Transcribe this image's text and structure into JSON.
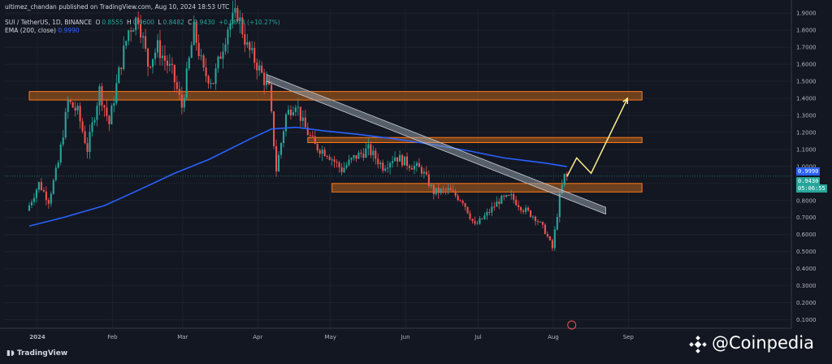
{
  "header": {
    "publisher": "ultimez_chandan published on TradingView.com, Aug 10, 2024 18:53 UTC",
    "symbol": "SUI / TetherUS, 1D, BINANCE",
    "ohlc": {
      "o_label": "O",
      "o": "0.8555",
      "h_label": "H",
      "h": "0.9600",
      "l_label": "L",
      "l": "0.8482",
      "c_label": "C",
      "c": "0.9430",
      "change": "+0.0878 (+10.27%)"
    },
    "ema_label": "EMA (200, close)",
    "ema_value": "0.9990"
  },
  "footer": {
    "tradingview": "TradingView"
  },
  "watermark": {
    "text": "@Coinpedia"
  },
  "price_tags": {
    "ema": "0.9990",
    "last": "0.9430",
    "countdown": "05:06:55"
  },
  "colors": {
    "up": "#26a69a",
    "down": "#ef5350",
    "ema": "#2962ff",
    "zone_fill": "#b8621b",
    "zone_border": "#ff7a1a",
    "channel": "#9aa5b1",
    "projection": "#ffef8a",
    "background": "#131722"
  },
  "chart_data": {
    "type": "candlestick",
    "title": "SUI / TetherUS, 1D, BINANCE",
    "y_axis": {
      "ylim": [
        0.05,
        1.92
      ],
      "ticks": [
        "0.1000",
        "0.2000",
        "0.3000",
        "0.4000",
        "0.5000",
        "0.6000",
        "0.7000",
        "0.8000",
        "0.9000",
        "1.0000",
        "1.1000",
        "1.2000",
        "1.3000",
        "1.4000",
        "1.5000",
        "1.6000",
        "1.7000",
        "1.8000",
        "1.9000"
      ],
      "position": "right"
    },
    "x_axis": {
      "ticks": [
        "2024",
        "Feb",
        "Mar",
        "Apr",
        "May",
        "Jun",
        "Jul",
        "Aug",
        "Sep"
      ]
    },
    "grid": true,
    "price_path": [
      [
        "2024-01-01",
        0.74
      ],
      [
        "2024-01-06",
        0.9
      ],
      [
        "2024-01-10",
        0.8
      ],
      [
        "2024-01-14",
        1.02
      ],
      [
        "2024-01-18",
        1.38
      ],
      [
        "2024-01-22",
        1.32
      ],
      [
        "2024-01-26",
        1.1
      ],
      [
        "2024-01-31",
        1.45
      ],
      [
        "2024-02-04",
        1.25
      ],
      [
        "2024-02-08",
        1.55
      ],
      [
        "2024-02-12",
        1.8
      ],
      [
        "2024-02-16",
        1.88
      ],
      [
        "2024-02-20",
        1.6
      ],
      [
        "2024-02-24",
        1.7
      ],
      [
        "2024-03-01",
        1.55
      ],
      [
        "2024-03-05",
        1.35
      ],
      [
        "2024-03-10",
        1.8
      ],
      [
        "2024-03-14",
        1.55
      ],
      [
        "2024-03-18",
        1.5
      ],
      [
        "2024-03-24",
        1.82
      ],
      [
        "2024-03-28",
        1.9
      ],
      [
        "2024-04-01",
        1.7
      ],
      [
        "2024-04-05",
        1.6
      ],
      [
        "2024-04-10",
        1.45
      ],
      [
        "2024-04-13",
        0.98
      ],
      [
        "2024-04-17",
        1.3
      ],
      [
        "2024-04-21",
        1.38
      ],
      [
        "2024-04-24",
        1.25
      ],
      [
        "2024-04-29",
        1.12
      ],
      [
        "2024-05-04",
        1.08
      ],
      [
        "2024-05-10",
        0.98
      ],
      [
        "2024-05-15",
        1.05
      ],
      [
        "2024-05-21",
        1.1
      ],
      [
        "2024-05-27",
        1.0
      ],
      [
        "2024-06-01",
        1.06
      ],
      [
        "2024-06-06",
        1.02
      ],
      [
        "2024-06-12",
        0.98
      ],
      [
        "2024-06-17",
        0.85
      ],
      [
        "2024-06-23",
        0.86
      ],
      [
        "2024-06-29",
        0.8
      ],
      [
        "2024-07-04",
        0.65
      ],
      [
        "2024-07-09",
        0.72
      ],
      [
        "2024-07-14",
        0.8
      ],
      [
        "2024-07-19",
        0.82
      ],
      [
        "2024-07-24",
        0.75
      ],
      [
        "2024-07-29",
        0.7
      ],
      [
        "2024-08-02",
        0.62
      ],
      [
        "2024-08-05",
        0.52
      ],
      [
        "2024-08-08",
        0.82
      ],
      [
        "2024-08-10",
        0.943
      ]
    ],
    "ema200_path": [
      [
        "2024-01-01",
        0.65
      ],
      [
        "2024-01-15",
        0.7
      ],
      [
        "2024-02-01",
        0.77
      ],
      [
        "2024-02-15",
        0.86
      ],
      [
        "2024-03-01",
        0.96
      ],
      [
        "2024-03-15",
        1.04
      ],
      [
        "2024-04-01",
        1.16
      ],
      [
        "2024-04-10",
        1.22
      ],
      [
        "2024-04-20",
        1.23
      ],
      [
        "2024-05-01",
        1.21
      ],
      [
        "2024-05-15",
        1.19
      ],
      [
        "2024-06-01",
        1.16
      ],
      [
        "2024-06-15",
        1.13
      ],
      [
        "2024-07-01",
        1.09
      ],
      [
        "2024-07-15",
        1.05
      ],
      [
        "2024-08-01",
        1.02
      ],
      [
        "2024-08-10",
        0.999
      ]
    ],
    "resistance_zones": [
      {
        "from": "2024-01-01",
        "to": "2024-09-10",
        "low": 1.39,
        "high": 1.44
      },
      {
        "from": "2024-04-25",
        "to": "2024-09-10",
        "low": 1.14,
        "high": 1.17
      },
      {
        "from": "2024-05-05",
        "to": "2024-09-10",
        "low": 0.85,
        "high": 0.9
      }
    ],
    "descending_channel": {
      "start": [
        "2024-04-08",
        1.52
      ],
      "end": [
        "2024-08-26",
        0.74
      ],
      "width": 0.04
    },
    "projection_path": [
      [
        "2024-08-10",
        0.94
      ],
      [
        "2024-08-14",
        1.05
      ],
      [
        "2024-08-20",
        0.96
      ],
      [
        "2024-09-04",
        1.4
      ]
    ]
  }
}
